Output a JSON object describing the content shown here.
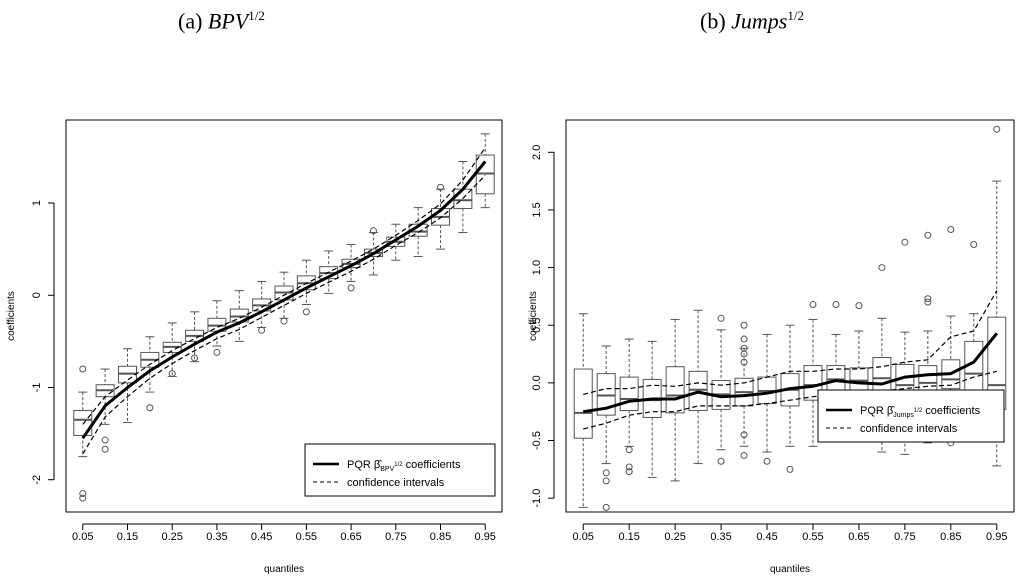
{
  "captions": [
    {
      "label": "(a)",
      "symbol": "BPV",
      "exponent": "1/2"
    },
    {
      "label": "(b)",
      "symbol": "Jumps",
      "exponent": "1/2"
    }
  ],
  "chart_data": [
    {
      "type": "box",
      "xlabel": "quantiles",
      "ylabel": "coefficients",
      "xticks": [
        "0.05",
        "0.15",
        "0.25",
        "0.35",
        "0.45",
        "0.55",
        "0.65",
        "0.75",
        "0.85",
        "0.95"
      ],
      "yticks": [
        -2,
        -1,
        0,
        1
      ],
      "ylim": [
        -2.35,
        1.9
      ],
      "quantiles": [
        0.05,
        0.1,
        0.15,
        0.2,
        0.25,
        0.3,
        0.35,
        0.4,
        0.45,
        0.5,
        0.55,
        0.6,
        0.65,
        0.7,
        0.75,
        0.8,
        0.85,
        0.9,
        0.95
      ],
      "pqr_coefficients": [
        -1.55,
        -1.2,
        -1.0,
        -0.82,
        -0.67,
        -0.53,
        -0.4,
        -0.3,
        -0.18,
        -0.05,
        0.08,
        0.2,
        0.32,
        0.45,
        0.6,
        0.75,
        0.92,
        1.15,
        1.45
      ],
      "ci_upper": [
        -1.4,
        -1.1,
        -0.92,
        -0.75,
        -0.6,
        -0.47,
        -0.35,
        -0.25,
        -0.13,
        0.0,
        0.13,
        0.25,
        0.37,
        0.5,
        0.65,
        0.81,
        0.99,
        1.25,
        1.6
      ],
      "ci_lower": [
        -1.72,
        -1.32,
        -1.1,
        -0.9,
        -0.74,
        -0.6,
        -0.47,
        -0.37,
        -0.24,
        -0.11,
        0.02,
        0.14,
        0.26,
        0.39,
        0.54,
        0.68,
        0.84,
        1.05,
        1.3
      ],
      "boxes": [
        {
          "min": -1.75,
          "q1": -1.52,
          "median": -1.35,
          "q3": -1.25,
          "max": -1.05,
          "outliers": [
            -0.8,
            -2.15,
            -2.2
          ]
        },
        {
          "min": -1.4,
          "q1": -1.1,
          "median": -1.03,
          "q3": -0.97,
          "max": -0.8,
          "outliers": [
            -1.57,
            -1.67
          ]
        },
        {
          "min": -1.38,
          "q1": -0.95,
          "median": -0.85,
          "q3": -0.77,
          "max": -0.58,
          "outliers": []
        },
        {
          "min": -1.05,
          "q1": -0.78,
          "median": -0.7,
          "q3": -0.62,
          "max": -0.45,
          "outliers": [
            -1.22
          ]
        },
        {
          "min": -0.88,
          "q1": -0.62,
          "median": -0.56,
          "q3": -0.51,
          "max": -0.3,
          "outliers": [
            -0.85
          ]
        },
        {
          "min": -0.72,
          "q1": -0.5,
          "median": -0.44,
          "q3": -0.38,
          "max": -0.18,
          "outliers": [
            -0.68
          ]
        },
        {
          "min": -0.55,
          "q1": -0.39,
          "median": -0.33,
          "q3": -0.25,
          "max": -0.06,
          "outliers": [
            -0.62
          ]
        },
        {
          "min": -0.5,
          "q1": -0.29,
          "median": -0.23,
          "q3": -0.15,
          "max": 0.05,
          "outliers": []
        },
        {
          "min": -0.35,
          "q1": -0.17,
          "median": -0.11,
          "q3": -0.04,
          "max": 0.15,
          "outliers": [
            -0.38
          ]
        },
        {
          "min": -0.25,
          "q1": -0.05,
          "median": 0.03,
          "q3": 0.1,
          "max": 0.25,
          "outliers": [
            -0.28
          ]
        },
        {
          "min": -0.1,
          "q1": 0.06,
          "median": 0.13,
          "q3": 0.21,
          "max": 0.38,
          "outliers": [
            -0.18
          ]
        },
        {
          "min": 0.02,
          "q1": 0.18,
          "median": 0.24,
          "q3": 0.31,
          "max": 0.48,
          "outliers": []
        },
        {
          "min": 0.15,
          "q1": 0.3,
          "median": 0.34,
          "q3": 0.39,
          "max": 0.55,
          "outliers": [
            0.08
          ]
        },
        {
          "min": 0.22,
          "q1": 0.42,
          "median": 0.46,
          "q3": 0.5,
          "max": 0.68,
          "outliers": [
            0.7
          ]
        },
        {
          "min": 0.38,
          "q1": 0.53,
          "median": 0.58,
          "q3": 0.63,
          "max": 0.77,
          "outliers": []
        },
        {
          "min": 0.42,
          "q1": 0.64,
          "median": 0.69,
          "q3": 0.77,
          "max": 0.95,
          "outliers": []
        },
        {
          "min": 0.5,
          "q1": 0.76,
          "median": 0.85,
          "q3": 0.94,
          "max": 1.15,
          "outliers": [
            1.17
          ]
        },
        {
          "min": 0.68,
          "q1": 0.94,
          "median": 1.03,
          "q3": 1.15,
          "max": 1.45,
          "outliers": []
        },
        {
          "min": 0.95,
          "q1": 1.1,
          "median": 1.32,
          "q3": 1.52,
          "max": 1.75,
          "outliers": []
        }
      ],
      "legend": {
        "position": "bottom-right",
        "line_label_prefix": "PQR",
        "line_label_symbol": "β̂",
        "line_label_subscript": "BPV",
        "line_label_superscript": "1/2",
        "line_label_suffix": "coefficients",
        "dashed_label": "confidence intervals"
      }
    },
    {
      "type": "box",
      "xlabel": "quantiles",
      "ylabel": "coefficients",
      "xticks": [
        "0.05",
        "0.15",
        "0.25",
        "0.35",
        "0.45",
        "0.55",
        "0.65",
        "0.75",
        "0.85",
        "0.95"
      ],
      "yticks": [
        -1.0,
        -0.5,
        0.0,
        0.5,
        1.0,
        1.5,
        2.0
      ],
      "ytick_labels": [
        "-1.0",
        "-0.5",
        "0.0",
        "0.5",
        "1.0",
        "1.5",
        "2.0"
      ],
      "ylim": [
        -1.12,
        2.28
      ],
      "quantiles": [
        0.05,
        0.1,
        0.15,
        0.2,
        0.25,
        0.3,
        0.35,
        0.4,
        0.45,
        0.5,
        0.55,
        0.6,
        0.65,
        0.7,
        0.75,
        0.8,
        0.85,
        0.9,
        0.95
      ],
      "pqr_coefficients": [
        -0.25,
        -0.22,
        -0.16,
        -0.14,
        -0.14,
        -0.08,
        -0.12,
        -0.11,
        -0.09,
        -0.05,
        -0.03,
        0.02,
        0.0,
        -0.01,
        0.05,
        0.07,
        0.08,
        0.18,
        0.43
      ],
      "ci_upper": [
        -0.1,
        -0.05,
        -0.05,
        -0.02,
        -0.03,
        0.0,
        -0.02,
        0.0,
        0.05,
        0.1,
        0.1,
        0.12,
        0.12,
        0.14,
        0.18,
        0.2,
        0.4,
        0.45,
        0.8
      ],
      "ci_lower": [
        -0.4,
        -0.35,
        -0.28,
        -0.25,
        -0.25,
        -0.2,
        -0.2,
        -0.2,
        -0.18,
        -0.15,
        -0.12,
        -0.1,
        -0.08,
        -0.07,
        -0.05,
        -0.03,
        -0.02,
        0.05,
        0.1
      ],
      "boxes": [
        {
          "min": -1.08,
          "q1": -0.48,
          "median": -0.26,
          "q3": 0.12,
          "max": 0.6,
          "outliers": []
        },
        {
          "min": -0.7,
          "q1": -0.28,
          "median": -0.11,
          "q3": 0.08,
          "max": 0.32,
          "outliers": [
            -0.78,
            -0.85,
            -1.08
          ]
        },
        {
          "min": -0.55,
          "q1": -0.24,
          "median": -0.14,
          "q3": 0.05,
          "max": 0.38,
          "outliers": [
            -0.58,
            -0.73,
            -0.77
          ]
        },
        {
          "min": -0.82,
          "q1": -0.3,
          "median": -0.15,
          "q3": 0.03,
          "max": 0.36,
          "outliers": []
        },
        {
          "min": -0.85,
          "q1": -0.26,
          "median": -0.11,
          "q3": 0.14,
          "max": 0.55,
          "outliers": []
        },
        {
          "min": -0.7,
          "q1": -0.24,
          "median": -0.06,
          "q3": 0.1,
          "max": 0.63,
          "outliers": []
        },
        {
          "min": -0.58,
          "q1": -0.23,
          "median": -0.1,
          "q3": 0.02,
          "max": 0.46,
          "outliers": [
            0.56,
            -0.68
          ]
        },
        {
          "min": -0.55,
          "q1": -0.2,
          "median": -0.08,
          "q3": 0.04,
          "max": 0.3,
          "outliers": [
            0.5,
            0.38,
            0.3,
            0.25,
            0.18,
            -0.45,
            -0.63
          ]
        },
        {
          "min": -0.6,
          "q1": -0.18,
          "median": -0.07,
          "q3": 0.05,
          "max": 0.42,
          "outliers": [
            -0.68
          ]
        },
        {
          "min": -0.55,
          "q1": -0.2,
          "median": -0.06,
          "q3": 0.08,
          "max": 0.5,
          "outliers": [
            -0.75
          ]
        },
        {
          "min": -0.55,
          "q1": -0.15,
          "median": -0.02,
          "q3": 0.15,
          "max": 0.55,
          "outliers": [
            0.68
          ]
        },
        {
          "min": -0.45,
          "q1": -0.15,
          "median": 0.03,
          "q3": 0.15,
          "max": 0.42,
          "outliers": [
            0.68
          ]
        },
        {
          "min": -0.5,
          "q1": -0.1,
          "median": 0.02,
          "q3": 0.13,
          "max": 0.45,
          "outliers": [
            0.67,
            -0.45
          ]
        },
        {
          "min": -0.6,
          "q1": -0.08,
          "median": 0.04,
          "q3": 0.22,
          "max": 0.56,
          "outliers": [
            1.0
          ]
        },
        {
          "min": -0.62,
          "q1": -0.18,
          "median": -0.02,
          "q3": 0.16,
          "max": 0.44,
          "outliers": [
            1.22
          ]
        },
        {
          "min": -0.52,
          "q1": -0.18,
          "median": 0.0,
          "q3": 0.15,
          "max": 0.45,
          "outliers": [
            1.28,
            0.73,
            0.7
          ]
        },
        {
          "min": -0.45,
          "q1": -0.05,
          "median": 0.03,
          "q3": 0.2,
          "max": 0.58,
          "outliers": [
            1.33,
            -0.52
          ]
        },
        {
          "min": -0.48,
          "q1": -0.1,
          "median": 0.08,
          "q3": 0.36,
          "max": 0.6,
          "outliers": [
            1.2
          ]
        },
        {
          "min": -0.72,
          "q1": -0.23,
          "median": -0.02,
          "q3": 0.57,
          "max": 1.75,
          "outliers": [
            2.2
          ]
        }
      ],
      "legend": {
        "position": "bottom-right",
        "line_label_prefix": "PQR",
        "line_label_symbol": "β̂",
        "line_label_subscript": "Jumps",
        "line_label_superscript": "1/2",
        "line_label_suffix": "coefficients",
        "dashed_label": "confidence intervals"
      }
    }
  ]
}
